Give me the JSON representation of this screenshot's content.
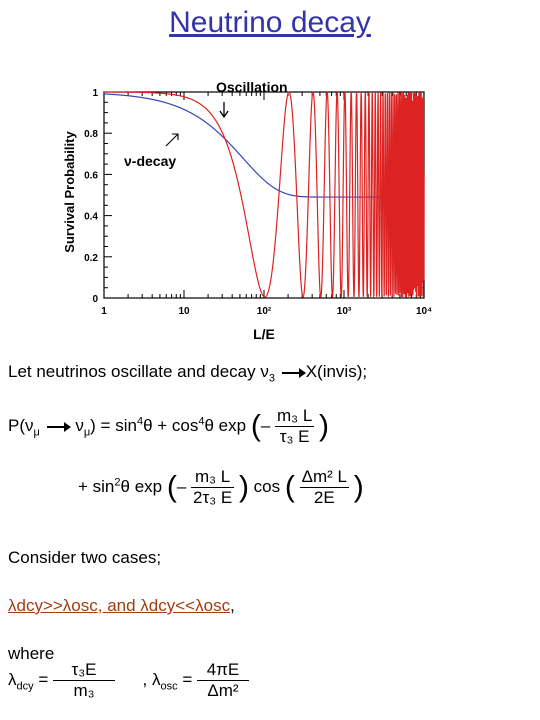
{
  "title": "Neutrino decay",
  "chart_data": {
    "type": "line",
    "ylabel": "Survival Probability",
    "xlabel": "L/E",
    "x_scale": "log",
    "xlim": [
      1,
      10000
    ],
    "ylim": [
      0,
      1
    ],
    "x_ticks": [
      "1",
      "10",
      "10²",
      "10³",
      "10⁴"
    ],
    "y_ticks": [
      "0",
      "0.2",
      "0.4",
      "0.6",
      "0.8",
      "1"
    ],
    "annotations": [
      "Oscillation",
      "ν-decay"
    ],
    "series": [
      {
        "name": "Oscillation",
        "color": "#dd2222",
        "model": "1 - sin^2(2θ) sin^2(πx/x0)",
        "params": {
          "x0": 205,
          "amp": 0.995
        }
      },
      {
        "name": "ν-decay",
        "color": "#3344bb",
        "model": "0.49 + 0.51 exp(-x/x1)",
        "params": {
          "x1": 55,
          "floor": 0.49
        }
      }
    ]
  },
  "text": {
    "intro": "Let neutrinos oscillate and decay ν",
    "intro_sub": "3",
    "intro_tail": "X(invis);",
    "p_lhs_a": "P(ν",
    "p_lhs_sub1": "μ",
    "p_lhs_sub2": "μ",
    "p_lhs_b": ") = sin",
    "sup4a": "4",
    "p_mid": "θ + cos",
    "sup4b": "4",
    "p_exp": "θ exp",
    "minus": "–",
    "f1_num": "m₃ L",
    "f1_den": "τ₃ E",
    "l2_a": "+ sin",
    "sup2": "2",
    "l2_b": "θ exp",
    "f2_num": "m₃  L",
    "f2_den": "2τ₃  E",
    "cos": "cos",
    "f3_num": "Δm² L",
    "f3_den": "2E",
    "consider": "Consider two cases;",
    "cases": "λdcy>>λosc, and λdcy<<λosc",
    "cases_tail": ",",
    "where": "where",
    "ldcy": "λ",
    "ldcy_sub": "dcy",
    "eq": "=",
    "f4_num": "τ₃E",
    "f4_den": "m₃",
    "comma_losc": ",  λ",
    "losc_sub": "osc",
    "f5_num": "4πE",
    "f5_den": "Δm²"
  }
}
